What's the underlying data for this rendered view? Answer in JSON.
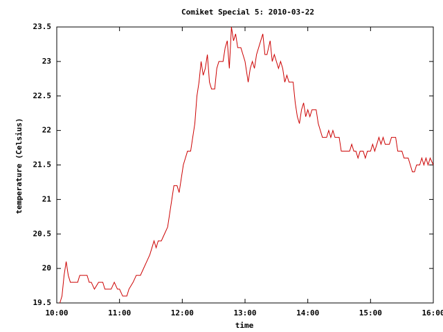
{
  "chart_data": {
    "type": "line",
    "title": "Comiket Special 5: 2010-03-22",
    "x_label": "time",
    "y_label": "temperature (Celsius)",
    "xlim": [
      "10:00",
      "16:00"
    ],
    "xticks": [
      "10:00",
      "11:00",
      "12:00",
      "13:00",
      "14:00",
      "15:00",
      "16:00"
    ],
    "ylim": [
      19.5,
      23.5
    ],
    "yticks": [
      19.5,
      20,
      20.5,
      21,
      21.5,
      22,
      22.5,
      23,
      23.5
    ],
    "grid": false,
    "series": [
      {
        "name": "temperature",
        "color": "#cc0000",
        "x": [
          "10:03",
          "10:05",
          "10:07",
          "10:09",
          "10:11",
          "10:13",
          "10:16",
          "10:20",
          "10:22",
          "10:26",
          "10:29",
          "10:31",
          "10:33",
          "10:36",
          "10:40",
          "10:44",
          "10:46",
          "10:52",
          "10:55",
          "10:58",
          "11:00",
          "11:03",
          "11:07",
          "11:09",
          "11:13",
          "11:16",
          "11:20",
          "11:23",
          "11:26",
          "11:29",
          "11:31",
          "11:33",
          "11:35",
          "11:37",
          "11:40",
          "11:43",
          "11:46",
          "11:48",
          "11:50",
          "11:52",
          "11:55",
          "11:57",
          "11:59",
          "12:01",
          "12:03",
          "12:05",
          "12:08",
          "12:10",
          "12:12",
          "12:14",
          "12:16",
          "12:18",
          "12:20",
          "12:22",
          "12:24",
          "12:26",
          "12:28",
          "12:31",
          "12:33",
          "12:35",
          "12:39",
          "12:41",
          "12:43",
          "12:45",
          "12:47",
          "12:49",
          "12:51",
          "12:53",
          "12:56",
          "12:58",
          "13:00",
          "13:02",
          "13:03",
          "13:05",
          "13:07",
          "13:09",
          "13:11",
          "13:13",
          "13:15",
          "13:17",
          "13:19",
          "13:21",
          "13:24",
          "13:26",
          "13:28",
          "13:30",
          "13:32",
          "13:34",
          "13:36",
          "13:38",
          "13:40",
          "13:42",
          "13:46",
          "13:48",
          "13:50",
          "13:52",
          "13:54",
          "13:56",
          "13:58",
          "14:00",
          "14:02",
          "14:04",
          "14:08",
          "14:10",
          "14:12",
          "14:14",
          "14:18",
          "14:20",
          "14:22",
          "14:24",
          "14:26",
          "14:30",
          "14:32",
          "14:40",
          "14:42",
          "14:44",
          "14:46",
          "14:48",
          "14:50",
          "14:53",
          "14:55",
          "14:57",
          "15:00",
          "15:02",
          "15:04",
          "15:06",
          "15:08",
          "15:10",
          "15:12",
          "15:14",
          "15:18",
          "15:20",
          "15:24",
          "15:26",
          "15:30",
          "15:32",
          "15:36",
          "15:38",
          "15:40",
          "15:42",
          "15:44",
          "15:47",
          "15:49",
          "15:51",
          "15:53",
          "15:55",
          "15:57",
          "16:00"
        ],
        "values": [
          19.5,
          19.6,
          19.9,
          20.1,
          19.9,
          19.8,
          19.8,
          19.8,
          19.9,
          19.9,
          19.9,
          19.8,
          19.8,
          19.7,
          19.8,
          19.8,
          19.7,
          19.7,
          19.8,
          19.7,
          19.7,
          19.6,
          19.6,
          19.7,
          19.8,
          19.9,
          19.9,
          20.0,
          20.1,
          20.2,
          20.3,
          20.4,
          20.3,
          20.4,
          20.4,
          20.5,
          20.6,
          20.8,
          21.0,
          21.2,
          21.2,
          21.1,
          21.3,
          21.5,
          21.6,
          21.7,
          21.7,
          21.9,
          22.1,
          22.5,
          22.7,
          23.0,
          22.8,
          22.9,
          23.1,
          22.7,
          22.6,
          22.6,
          22.9,
          23.0,
          23.0,
          23.2,
          23.3,
          22.9,
          23.5,
          23.3,
          23.4,
          23.2,
          23.2,
          23.1,
          23.0,
          22.8,
          22.7,
          22.9,
          23.0,
          22.9,
          23.1,
          23.2,
          23.3,
          23.4,
          23.1,
          23.1,
          23.3,
          23.0,
          23.1,
          23.0,
          22.9,
          23.0,
          22.9,
          22.7,
          22.8,
          22.7,
          22.7,
          22.4,
          22.2,
          22.1,
          22.3,
          22.4,
          22.2,
          22.3,
          22.2,
          22.3,
          22.3,
          22.1,
          22.0,
          21.9,
          21.9,
          22.0,
          21.9,
          22.0,
          21.9,
          21.9,
          21.7,
          21.7,
          21.8,
          21.7,
          21.7,
          21.6,
          21.7,
          21.7,
          21.6,
          21.7,
          21.7,
          21.8,
          21.7,
          21.8,
          21.9,
          21.8,
          21.9,
          21.8,
          21.8,
          21.9,
          21.9,
          21.7,
          21.7,
          21.6,
          21.6,
          21.5,
          21.4,
          21.4,
          21.5,
          21.5,
          21.6,
          21.5,
          21.6,
          21.5,
          21.6,
          21.5
        ]
      }
    ]
  }
}
